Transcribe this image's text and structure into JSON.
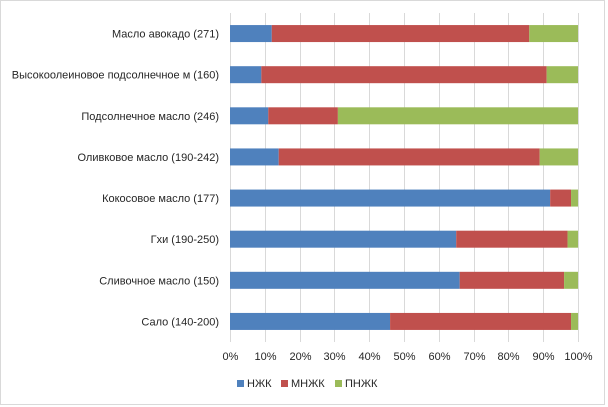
{
  "chart_data": {
    "type": "bar",
    "orientation": "horizontal",
    "stacked": "percent",
    "title": "",
    "xlabel": "",
    "ylabel": "",
    "xlim": [
      0,
      100
    ],
    "ticks": [
      "0%",
      "10%",
      "20%",
      "30%",
      "40%",
      "50%",
      "60%",
      "70%",
      "80%",
      "90%",
      "100%"
    ],
    "tick_values": [
      0,
      10,
      20,
      30,
      40,
      50,
      60,
      70,
      80,
      90,
      100
    ],
    "grid": true,
    "legend_position": "bottom",
    "categories": [
      "Масло авокадо (271)",
      "Высокоолеиновое подсолнечное м (160)",
      "Подсолнечное масло (246)",
      "Оливковое масло (190-242)",
      "Кокосовое масло (177)",
      "Гхи (190-250)",
      "Сливочное масло (150)",
      "Сало (140-200)"
    ],
    "series": [
      {
        "name": "НЖК",
        "color": "#4f81bd",
        "values": [
          12,
          9,
          11,
          14,
          92,
          65,
          66,
          46
        ]
      },
      {
        "name": "МНЖК",
        "color": "#c0504d",
        "values": [
          74,
          82,
          20,
          75,
          6,
          32,
          30,
          52
        ]
      },
      {
        "name": "ПНЖК",
        "color": "#9bbb59",
        "values": [
          14,
          9,
          69,
          11,
          2,
          3,
          4,
          2
        ]
      }
    ]
  }
}
